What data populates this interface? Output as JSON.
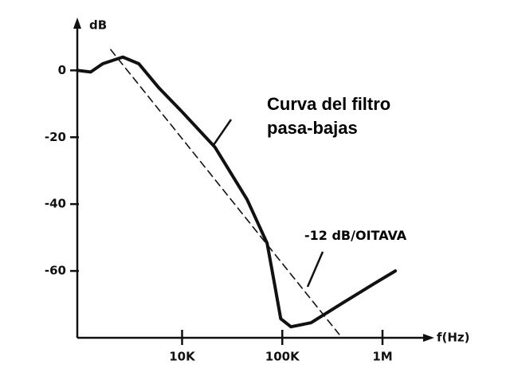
{
  "chart_data": {
    "type": "line",
    "y_label": "dB",
    "x_label": "f(Hz)",
    "xscale": "log",
    "xlim": [
      900,
      3000000
    ],
    "ylim": [
      -80,
      12
    ],
    "xticks": [
      {
        "value": 10000,
        "label": "10K"
      },
      {
        "value": 100000,
        "label": "100K"
      },
      {
        "value": 1000000,
        "label": "1M"
      }
    ],
    "yticks": [
      0,
      -20,
      -40,
      -60
    ],
    "series": [
      {
        "name": "Curva del filtro pasa-bajas",
        "color": "#111111",
        "style": "solid",
        "x": [
          900,
          1225,
          1615,
          2560,
          3700,
          5860,
          10000,
          21300,
          44500,
          70500,
          84700,
          96400,
          122000,
          194000,
          405000,
          847000,
          1343000
        ],
        "values": [
          0,
          -0.5,
          2,
          4,
          2,
          -5.2,
          -12.4,
          -23,
          -38.6,
          -51.7,
          -64.8,
          -74.3,
          -76.7,
          -75.5,
          -69.5,
          -63.6,
          -60
        ]
      },
      {
        "name": "-12 dB/OITAVA",
        "color": "#111111",
        "style": "dashed",
        "x": [
          1940,
          370000
        ],
        "values": [
          6.2,
          -79
        ]
      }
    ]
  }
}
